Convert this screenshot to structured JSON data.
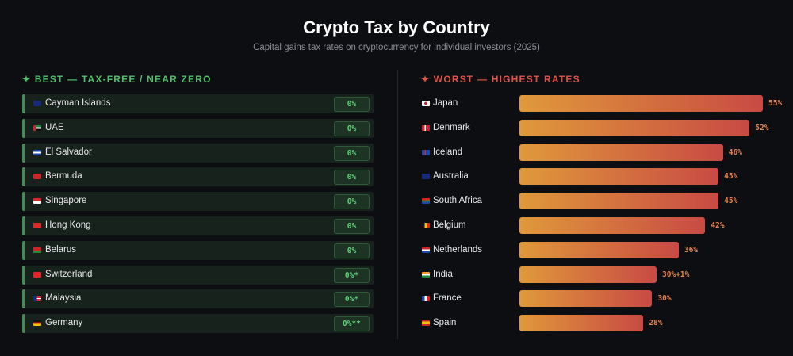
{
  "title": "Crypto Tax by Country",
  "subtitle": "Capital gains tax rates on cryptocurrency for individual investors (2025)",
  "best": {
    "heading": "✦ BEST — TAX-FREE / NEAR ZERO",
    "accent": "#4fbf6a",
    "items": [
      {
        "country": "Cayman Islands",
        "rate": "0%",
        "flag": "flag-cayman-islands"
      },
      {
        "country": "UAE",
        "rate": "0%",
        "flag": "flag-uae"
      },
      {
        "country": "El Salvador",
        "rate": "0%",
        "flag": "flag-el-salvador"
      },
      {
        "country": "Bermuda",
        "rate": "0%",
        "flag": "flag-bermuda"
      },
      {
        "country": "Singapore",
        "rate": "0%",
        "flag": "flag-singapore"
      },
      {
        "country": "Hong Kong",
        "rate": "0%",
        "flag": "flag-hong-kong"
      },
      {
        "country": "Belarus",
        "rate": "0%",
        "flag": "flag-belarus"
      },
      {
        "country": "Switzerland",
        "rate": "0%*",
        "flag": "flag-switzerland"
      },
      {
        "country": "Malaysia",
        "rate": "0%*",
        "flag": "flag-malaysia"
      },
      {
        "country": "Germany",
        "rate": "0%**",
        "flag": "flag-germany"
      }
    ]
  },
  "chart_data": {
    "type": "bar",
    "orientation": "horizontal",
    "title": "✦ WORST — HIGHEST RATES",
    "categories": [
      "Japan",
      "Denmark",
      "Iceland",
      "Australia",
      "South Africa",
      "Belgium",
      "Netherlands",
      "India",
      "France",
      "Spain"
    ],
    "values": [
      55,
      52,
      46,
      45,
      45,
      42,
      36,
      31,
      30,
      28
    ],
    "labels": [
      "55%",
      "52%",
      "46%",
      "45%",
      "45%",
      "42%",
      "36%",
      "30%+1%",
      "30%",
      "28%"
    ],
    "flags": [
      "flag-japan",
      "flag-denmark",
      "flag-iceland",
      "flag-australia",
      "flag-south-africa",
      "flag-belgium",
      "flag-netherlands",
      "flag-india",
      "flag-france",
      "flag-spain"
    ],
    "xlim": [
      0,
      55
    ],
    "grid": false,
    "accent": "#e0524a",
    "gradient": [
      "#e0993a",
      "#c84a44"
    ]
  }
}
